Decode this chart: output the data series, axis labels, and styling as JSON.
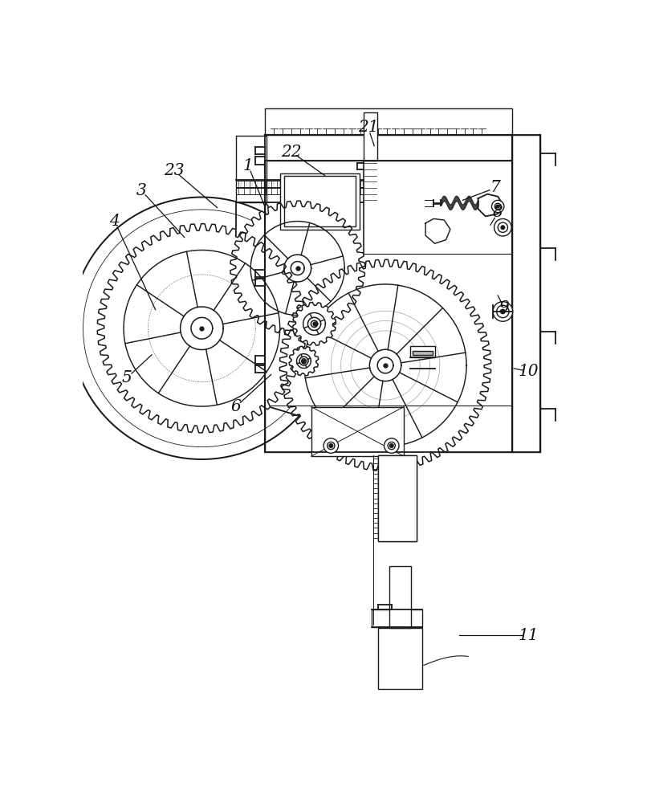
{
  "bg": "#ffffff",
  "lc": "#1a1a1a",
  "lw": 1.3,
  "fig_w": 8.06,
  "fig_h": 10.0,
  "dpi": 100,
  "labels": [
    "1",
    "3",
    "4",
    "5",
    "6",
    "7",
    "8",
    "9",
    "10",
    "11",
    "21",
    "22",
    "23"
  ],
  "lx": [
    268,
    95,
    52,
    72,
    248,
    668,
    672,
    682,
    722,
    722,
    462,
    338,
    148
  ],
  "ly": [
    112,
    152,
    202,
    455,
    502,
    148,
    188,
    342,
    445,
    872,
    50,
    90,
    120
  ],
  "tx": [
    295,
    165,
    118,
    112,
    305,
    615,
    660,
    672,
    698,
    610,
    472,
    392,
    218
  ],
  "ty_img": [
    178,
    228,
    345,
    418,
    450,
    168,
    208,
    322,
    440,
    872,
    80,
    128,
    180
  ]
}
